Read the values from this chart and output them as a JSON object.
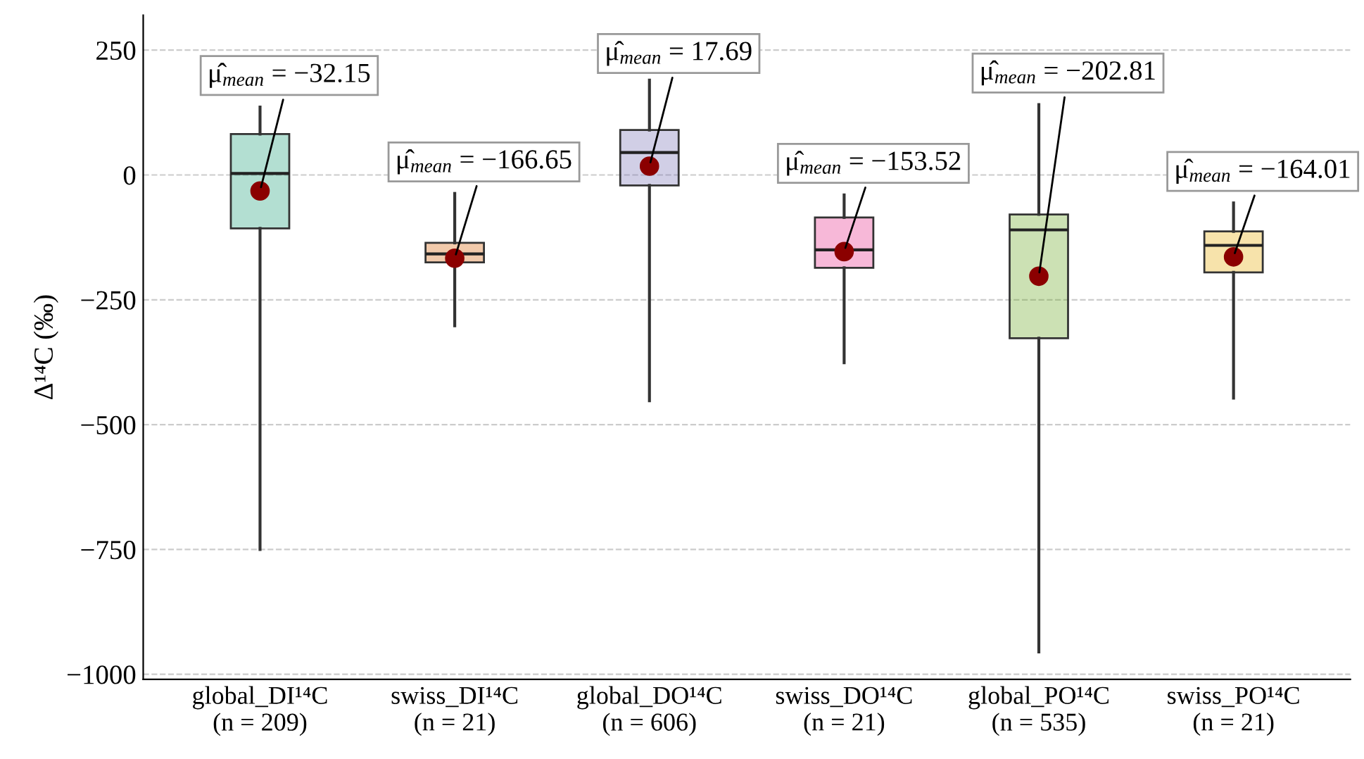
{
  "chart_data": {
    "type": "box",
    "ylabel": "Δ¹⁴C (‰)",
    "categories": [
      "global_DI¹⁴C\n(n = 209)",
      "swiss_DI¹⁴C\n(n = 21)",
      "global_DO¹⁴C\n(n = 606)",
      "swiss_DO¹⁴C\n(n = 21)",
      "global_PO¹⁴C\n(n = 535)",
      "swiss_PO¹⁴C\n(n = 21)"
    ],
    "colors": [
      "#1b9e77",
      "#d95f02",
      "#7570b3",
      "#e7298a",
      "#66a61e",
      "#e6ab02"
    ],
    "boxes": [
      {
        "low": -750,
        "q1": -107,
        "median": 3,
        "q3": 82,
        "high": 136
      },
      {
        "low": -302,
        "q1": -175,
        "median": -158,
        "q3": -136,
        "high": -37
      },
      {
        "low": -452,
        "q1": -21,
        "median": 45,
        "q3": 90,
        "high": 190
      },
      {
        "low": -376,
        "q1": -186,
        "median": -150,
        "q3": -85,
        "high": -40
      },
      {
        "low": -955,
        "q1": -327,
        "median": -110,
        "q3": -79,
        "high": 141
      },
      {
        "low": -447,
        "q1": -195,
        "median": -141,
        "q3": -113,
        "high": -56
      }
    ],
    "series": [
      {
        "type": "scatter",
        "color": "#8b0000",
        "x": [
          "global_DI¹⁴C\n(n = 209)",
          "swiss_DI¹⁴C\n(n = 21)",
          "global_DO¹⁴C\n(n = 606)",
          "swiss_DO¹⁴C\n(n = 21)",
          "global_PO¹⁴C\n(n = 535)",
          "swiss_PO¹⁴C\n(n = 21)"
        ],
        "values": [
          -32.15,
          -166.65,
          17.69,
          -153.52,
          -202.81,
          -164.01
        ]
      }
    ],
    "annotations": [
      {
        "text": "μ̂$_{mean}$ = −32.15",
        "x": "global_DI¹⁴C\n(n = 209)",
        "y": -32.15
      },
      {
        "text": "μ̂$_{mean}$ = −166.65",
        "x": "swiss_DI¹⁴C\n(n = 21)",
        "y": -166.65
      },
      {
        "text": "μ̂$_{mean}$ = 17.69",
        "x": "global_DO¹⁴C\n(n = 606)",
        "y": 17.69
      },
      {
        "text": "μ̂$_{mean}$ = −153.52",
        "x": "swiss_DO¹⁴C\n(n = 21)",
        "y": -153.52
      },
      {
        "text": "μ̂$_{mean}$ = −202.81",
        "x": "global_PO¹⁴C\n(n = 535)",
        "y": -202.81
      },
      {
        "text": "μ̂$_{mean}$ = −164.01",
        "x": "swiss_PO¹⁴C\n(n = 21)",
        "y": -164.01
      }
    ],
    "ylim": [
      -1010,
      320
    ],
    "yticks": [
      {
        "value": -1000,
        "label": "−1000"
      },
      {
        "value": -750,
        "label": "−750"
      },
      {
        "value": -500,
        "label": "−500"
      },
      {
        "value": -250,
        "label": "−250"
      },
      0,
      250
    ],
    "grid": "y",
    "marker": "circle"
  }
}
